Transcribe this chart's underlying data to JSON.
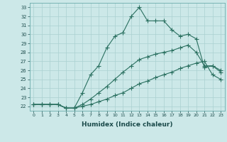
{
  "xlabel": "Humidex (Indice chaleur)",
  "ylabel": "",
  "bg_color": "#cce8e8",
  "line_color": "#2a7060",
  "marker_color": "#2a7060",
  "grid_color": "#aad0d0",
  "xlim": [
    -0.5,
    23.5
  ],
  "ylim": [
    21.5,
    33.5
  ],
  "xticks": [
    0,
    1,
    2,
    3,
    4,
    5,
    6,
    7,
    8,
    9,
    10,
    11,
    12,
    13,
    14,
    15,
    16,
    17,
    18,
    19,
    20,
    21,
    22,
    23
  ],
  "yticks": [
    22,
    23,
    24,
    25,
    26,
    27,
    28,
    29,
    30,
    31,
    32,
    33
  ],
  "line1_x": [
    0,
    1,
    2,
    3,
    4,
    5,
    6,
    7,
    8,
    9,
    10,
    11,
    12,
    13,
    14,
    15,
    16,
    17,
    18,
    19,
    20,
    21,
    22,
    23
  ],
  "line1_y": [
    22.2,
    22.2,
    22.2,
    22.2,
    21.8,
    21.8,
    22.0,
    22.2,
    22.5,
    22.8,
    23.2,
    23.5,
    24.0,
    24.5,
    24.8,
    25.2,
    25.5,
    25.8,
    26.2,
    26.5,
    26.8,
    27.0,
    25.5,
    25.0
  ],
  "line2_x": [
    0,
    1,
    2,
    3,
    4,
    5,
    6,
    7,
    8,
    9,
    10,
    11,
    12,
    13,
    14,
    15,
    16,
    17,
    18,
    19,
    20,
    21,
    22,
    23
  ],
  "line2_y": [
    22.2,
    22.2,
    22.2,
    22.2,
    21.8,
    21.8,
    22.2,
    22.8,
    23.5,
    24.2,
    25.0,
    25.8,
    26.5,
    27.2,
    27.5,
    27.8,
    28.0,
    28.2,
    28.5,
    28.8,
    28.0,
    26.5,
    26.5,
    25.8
  ],
  "line3_x": [
    0,
    1,
    2,
    3,
    4,
    5,
    6,
    7,
    8,
    9,
    10,
    11,
    12,
    13,
    14,
    15,
    16,
    17,
    18,
    19,
    20,
    21,
    22,
    23
  ],
  "line3_y": [
    22.2,
    22.2,
    22.2,
    22.2,
    21.8,
    21.8,
    23.5,
    25.5,
    26.5,
    28.5,
    29.8,
    30.2,
    32.0,
    33.0,
    31.5,
    31.5,
    31.5,
    30.5,
    29.8,
    30.0,
    29.5,
    26.3,
    26.5,
    26.0
  ]
}
